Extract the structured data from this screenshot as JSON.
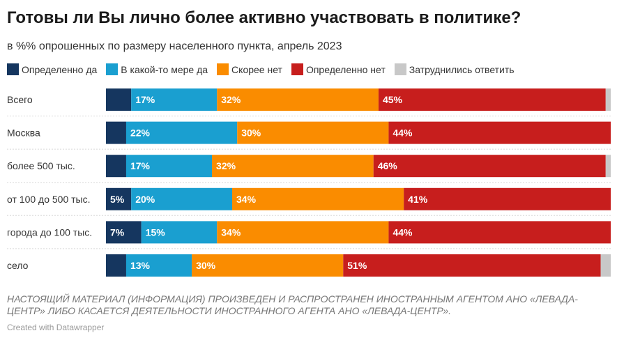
{
  "title": "Готовы ли Вы лично более активно участвовать в политике?",
  "subtitle": "в %% опрошенных по размеру населенного пункта, апрель 2023",
  "note": "НАСТОЯЩИЙ МАТЕРИАЛ (ИНФОРМАЦИЯ) ПРОИЗВЕДЕН И РАСПРОСТРАНЕН ИНОСТРАННЫМ АГЕНТОМ АНО «ЛЕВАДА-ЦЕНТР» ЛИБО КАСАЕТСЯ ДЕЯТЕЛЬНОСТИ ИНОСТРАННОГО АГЕНТА АНО «ЛЕВАДА-ЦЕНТР».",
  "credit": "Created with Datawrapper",
  "chart_data": {
    "type": "bar",
    "orientation": "horizontal",
    "stacked": true,
    "categories": [
      "Всего",
      "Москва",
      "более 500 тыс.",
      "от 100 до 500 тыс.",
      "города до 100 тыс.",
      "село"
    ],
    "xlim": [
      0,
      100
    ],
    "legend_position": "top-left",
    "grid": false,
    "series": [
      {
        "name": "Определенно да",
        "color": "#15365f",
        "values": [
          5,
          4,
          4,
          5,
          7,
          4
        ]
      },
      {
        "name": "В какой-то мере да",
        "color": "#1a9fd0",
        "values": [
          17,
          22,
          17,
          20,
          15,
          13
        ]
      },
      {
        "name": "Скорее нет",
        "color": "#fa8c00",
        "values": [
          32,
          30,
          32,
          34,
          34,
          30
        ]
      },
      {
        "name": "Определенно нет",
        "color": "#c71e1d",
        "values": [
          45,
          44,
          46,
          41,
          44,
          51
        ]
      },
      {
        "name": "Затруднились ответить",
        "color": "#c8c8c8",
        "values": [
          1,
          0,
          1,
          0,
          0,
          2
        ]
      }
    ],
    "data_labels": [
      [
        "",
        "17%",
        "32%",
        "45%",
        ""
      ],
      [
        "",
        "22%",
        "30%",
        "44%",
        ""
      ],
      [
        "",
        "17%",
        "32%",
        "46%",
        ""
      ],
      [
        "5%",
        "20%",
        "34%",
        "41%",
        ""
      ],
      [
        "7%",
        "15%",
        "34%",
        "44%",
        ""
      ],
      [
        "",
        "13%",
        "30%",
        "51%",
        ""
      ]
    ]
  }
}
